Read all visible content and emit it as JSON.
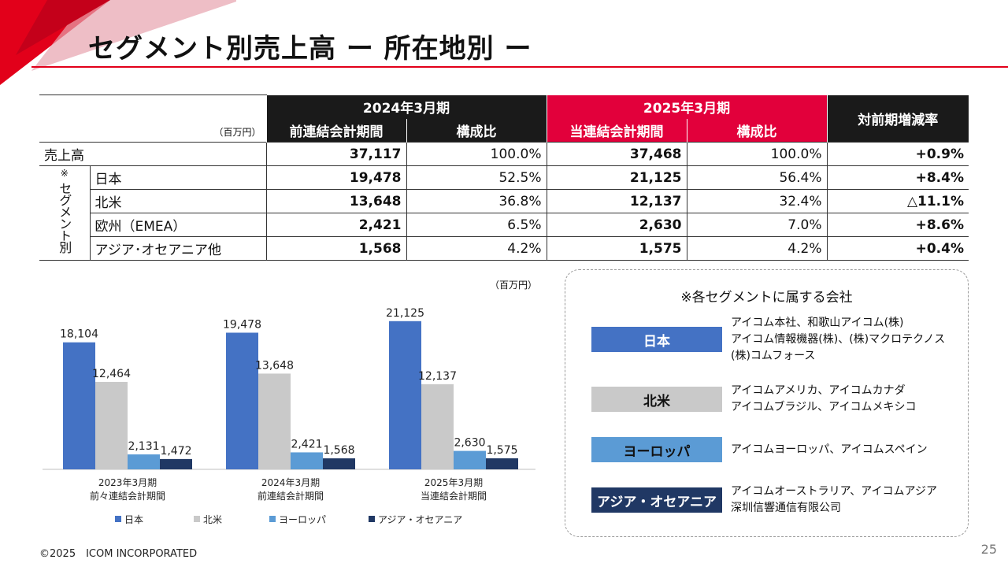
{
  "title": "セグメント別売上高 ー 所在地別 ー",
  "table": {
    "unit": "（百万円）",
    "period_prev": "2024年3月期",
    "period_curr": "2025年3月期",
    "yoy_header": "対前期増減率",
    "col_prev_sales": "前連結会計期間",
    "col_prev_ratio": "構成比",
    "col_curr_sales": "当連結会計期間",
    "col_curr_ratio": "構成比",
    "segment_label": "セグメント別",
    "segment_mark": "※",
    "rows": [
      {
        "label": "売上高",
        "prev": "37,117",
        "prev_ratio": "100.0%",
        "curr": "37,468",
        "curr_ratio": "100.0%",
        "yoy": "+0.9%"
      },
      {
        "label": "日本",
        "prev": "19,478",
        "prev_ratio": "52.5%",
        "curr": "21,125",
        "curr_ratio": "56.4%",
        "yoy": "+8.4%"
      },
      {
        "label": "北米",
        "prev": "13,648",
        "prev_ratio": "36.8%",
        "curr": "12,137",
        "curr_ratio": "32.4%",
        "yoy": "△11.1%"
      },
      {
        "label": "欧州（EMEA）",
        "prev": "2,421",
        "prev_ratio": "6.5%",
        "curr": "2,630",
        "curr_ratio": "7.0%",
        "yoy": "+8.6%"
      },
      {
        "label": "アジア･オセアニア他",
        "prev": "1,568",
        "prev_ratio": "4.2%",
        "curr": "1,575",
        "curr_ratio": "4.2%",
        "yoy": "+0.4%"
      }
    ]
  },
  "chart_unit": "（百万円）",
  "chart_data": {
    "type": "bar",
    "categories": [
      "2023年3月期\n前々連結会計期間",
      "2024年3月期\n前連結会計期間",
      "2025年3月期\n当連結会計期間"
    ],
    "category_lines": [
      [
        "2023年3月期",
        "前々連結会計期間"
      ],
      [
        "2024年3月期",
        "前連結会計期間"
      ],
      [
        "2025年3月期",
        "当連結会計期間"
      ]
    ],
    "series": [
      {
        "name": "日本",
        "color": "#4472c4",
        "values": [
          18104,
          19478,
          21125
        ],
        "labels": [
          "18,104",
          "19,478",
          "21,125"
        ]
      },
      {
        "name": "北米",
        "color": "#c9c9c9",
        "values": [
          12464,
          13648,
          12137
        ],
        "labels": [
          "12,464",
          "13,648",
          "12,137"
        ]
      },
      {
        "name": "ヨーロッパ",
        "color": "#5b9bd5",
        "values": [
          2131,
          2421,
          2630
        ],
        "labels": [
          "2,131",
          "2,421",
          "2,630"
        ]
      },
      {
        "name": "アジア・オセアニア",
        "color": "#203864",
        "values": [
          1472,
          1568,
          1575
        ],
        "labels": [
          "1,472",
          "1,568",
          "1,575"
        ]
      }
    ],
    "ylim": [
      0,
      22000
    ],
    "legend": "bottom",
    "grid": false
  },
  "companies": {
    "title": "※各セグメントに属する会社",
    "regions": [
      {
        "label": "日本",
        "color": "#4472c4",
        "text_color": "#ffffff",
        "lines": [
          "アイコム本社、和歌山アイコム(株)",
          "アイコム情報機器(株)、(株)マクロテクノス",
          "(株)コムフォース"
        ]
      },
      {
        "label": "北米",
        "color": "#c9c9c9",
        "text_color": "#111111",
        "lines": [
          "アイコムアメリカ、アイコムカナダ",
          "アイコムブラジル、アイコムメキシコ"
        ]
      },
      {
        "label": "ヨーロッパ",
        "color": "#5b9bd5",
        "text_color": "#111111",
        "lines": [
          "アイコムヨーロッパ、アイコムスペイン"
        ]
      },
      {
        "label": "アジア・オセアニア",
        "color": "#203864",
        "text_color": "#ffffff",
        "lines": [
          "アイコムオーストラリア、アイコムアジア",
          "深圳信響通信有限公司"
        ]
      }
    ]
  },
  "footer": "©2025　ICOM INCORPORATED",
  "page_number": "25",
  "accent_color": "#e2001a"
}
